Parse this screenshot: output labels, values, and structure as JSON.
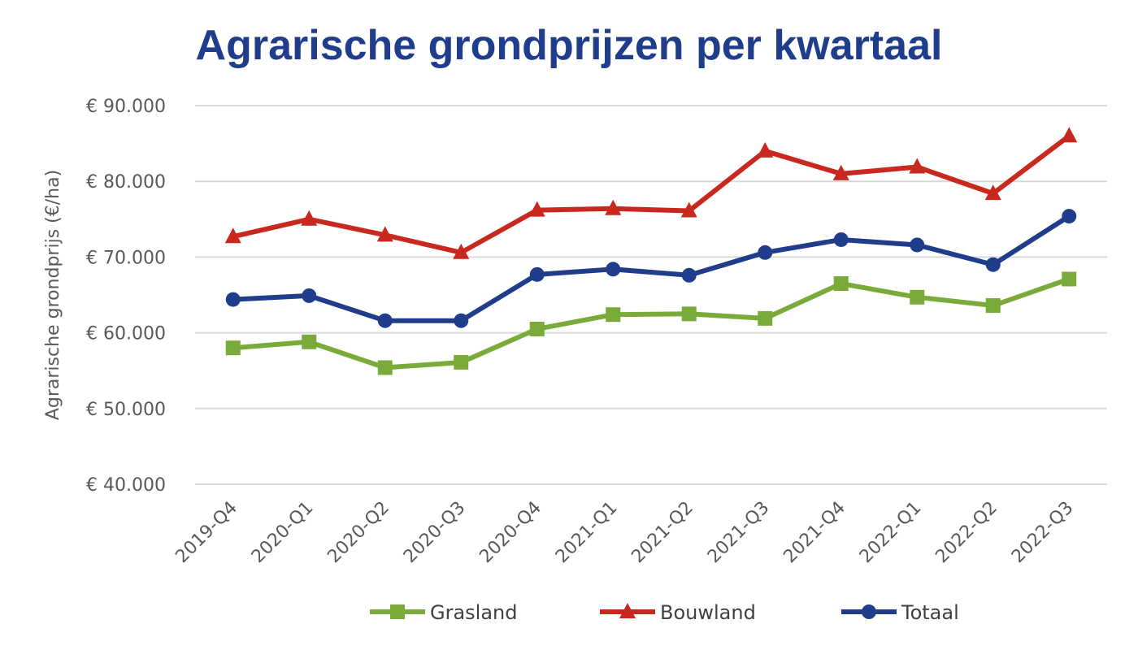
{
  "chart_data": {
    "type": "line",
    "title": "Agrarische grondprijzen per kwartaal",
    "ylabel": "Agrarische grondprijs (€/ha)",
    "xlabel": "",
    "ylim": [
      40000,
      90000
    ],
    "yticks": [
      {
        "value": 90000,
        "label": "€ 90.000"
      },
      {
        "value": 80000,
        "label": "€ 80.000"
      },
      {
        "value": 70000,
        "label": "€ 70.000"
      },
      {
        "value": 60000,
        "label": "€ 60.000"
      },
      {
        "value": 50000,
        "label": "€ 50.000"
      },
      {
        "value": 40000,
        "label": "€ 40.000"
      }
    ],
    "grid": true,
    "legend_position": "bottom",
    "categories": [
      "2019-Q4",
      "2020-Q1",
      "2020-Q2",
      "2020-Q3",
      "2020-Q4",
      "2021-Q1",
      "2021-Q2",
      "2021-Q3",
      "2021-Q4",
      "2022-Q1",
      "2022-Q2",
      "2022-Q3"
    ],
    "series": [
      {
        "name": "Grasland",
        "color": "#7aab3a",
        "marker": "square",
        "values": [
          58000,
          58800,
          55400,
          56100,
          60500,
          62400,
          62500,
          61900,
          66500,
          64700,
          63600,
          67100
        ]
      },
      {
        "name": "Bouwland",
        "color": "#c8281e",
        "marker": "triangle",
        "values": [
          72700,
          75000,
          72900,
          70600,
          76200,
          76400,
          76100,
          84000,
          81000,
          81900,
          78400,
          86000
        ]
      },
      {
        "name": "Totaal",
        "color": "#1f3d8a",
        "marker": "circle",
        "values": [
          64400,
          64900,
          61600,
          61600,
          67700,
          68400,
          67600,
          70600,
          72300,
          71600,
          69000,
          75400
        ]
      }
    ]
  }
}
